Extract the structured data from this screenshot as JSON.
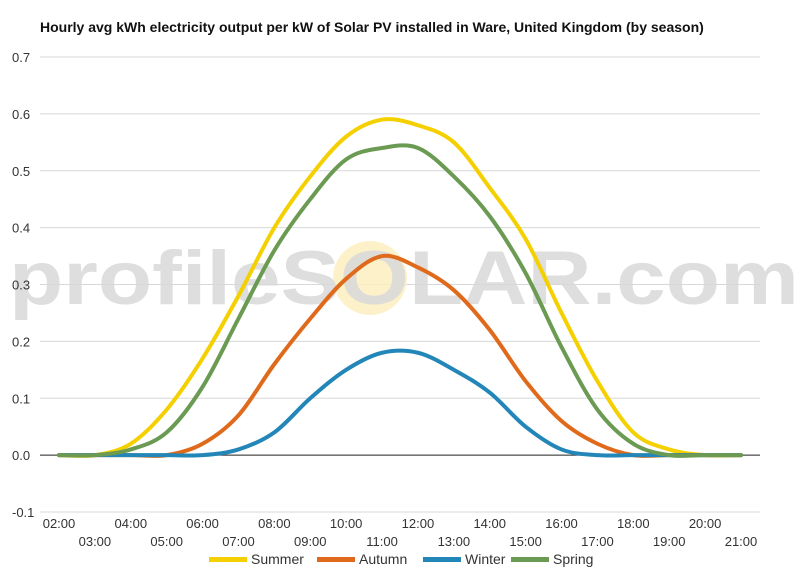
{
  "title": "Hourly avg kWh electricity output per kW of Solar PV installed in Ware, United Kingdom (by season)",
  "watermark": "profileSOLAR.com",
  "chart_data": {
    "type": "line",
    "title": "Hourly avg kWh electricity output per kW of Solar PV installed in Ware, United Kingdom (by season)",
    "xlabel": "",
    "ylabel": "",
    "x": [
      "02:00",
      "03:00",
      "04:00",
      "05:00",
      "06:00",
      "07:00",
      "08:00",
      "09:00",
      "10:00",
      "11:00",
      "12:00",
      "13:00",
      "14:00",
      "15:00",
      "16:00",
      "17:00",
      "18:00",
      "19:00",
      "20:00",
      "21:00"
    ],
    "y_ticks": [
      "0.7",
      "0.6",
      "0.5",
      "0.4",
      "0.3",
      "0.2",
      "0.1",
      "0.0",
      "-0.1"
    ],
    "ylim": [
      -0.1,
      0.7
    ],
    "grid": true,
    "legend_position": "bottom",
    "series": [
      {
        "name": "Summer",
        "color": "#f5d000",
        "values": [
          0,
          0,
          0.02,
          0.08,
          0.17,
          0.28,
          0.4,
          0.49,
          0.56,
          0.59,
          0.58,
          0.55,
          0.47,
          0.38,
          0.25,
          0.13,
          0.04,
          0.01,
          0,
          0
        ]
      },
      {
        "name": "Autumn",
        "color": "#e06a1c",
        "values": [
          0,
          0,
          0,
          0,
          0.02,
          0.07,
          0.16,
          0.24,
          0.31,
          0.35,
          0.33,
          0.29,
          0.22,
          0.13,
          0.06,
          0.02,
          0,
          0,
          0,
          0
        ]
      },
      {
        "name": "Winter",
        "color": "#2386b8",
        "values": [
          0,
          0,
          0,
          0,
          0,
          0.01,
          0.04,
          0.1,
          0.15,
          0.18,
          0.18,
          0.15,
          0.11,
          0.05,
          0.01,
          0,
          0,
          0,
          0,
          0
        ]
      },
      {
        "name": "Spring",
        "color": "#6b9a52",
        "values": [
          0,
          0,
          0.01,
          0.04,
          0.12,
          0.24,
          0.36,
          0.45,
          0.52,
          0.54,
          0.54,
          0.49,
          0.42,
          0.32,
          0.19,
          0.08,
          0.02,
          0,
          0,
          0
        ]
      }
    ]
  }
}
